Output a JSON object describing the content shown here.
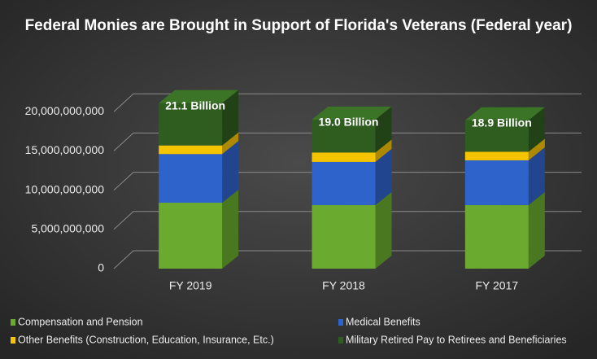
{
  "chart_data": {
    "type": "bar",
    "stacked": true,
    "title": "Federal Monies are Brought in Support of Florida's Veterans (Federal year)",
    "categories": [
      "FY 2019",
      "FY 2018",
      "FY 2017"
    ],
    "series": [
      {
        "name": "Compensation and Pension",
        "color": "#6aab2f",
        "values": [
          8400000000,
          8100000000,
          8100000000
        ]
      },
      {
        "name": "Medical Benefits",
        "color": "#2f63cc",
        "values": [
          6200000000,
          5500000000,
          5700000000
        ]
      },
      {
        "name": "Other Benefits (Construction, Education, Insurance, Etc.)",
        "color": "#f5c400",
        "values": [
          1100000000,
          1200000000,
          1100000000
        ]
      },
      {
        "name": "Military Retired Pay to Retirees and Beneficiaries",
        "color": "#2f5d1f",
        "values": [
          5400000000,
          4200000000,
          4000000000
        ]
      }
    ],
    "total_labels": [
      "21.1 Billion",
      "19.0 Billion",
      "18.9 Billion"
    ],
    "ylim": [
      0,
      25000000000
    ],
    "yticks": [
      0,
      {
        "value": 5000000000,
        "label": "5,000,000,000"
      },
      {
        "value": 10000000000,
        "label": "10,000,000,000"
      },
      {
        "value": 15000000000,
        "label": "15,000,000,000"
      },
      {
        "value": 20000000000,
        "label": "20,000,000,000"
      }
    ],
    "grid": true,
    "legend": "bottom"
  }
}
